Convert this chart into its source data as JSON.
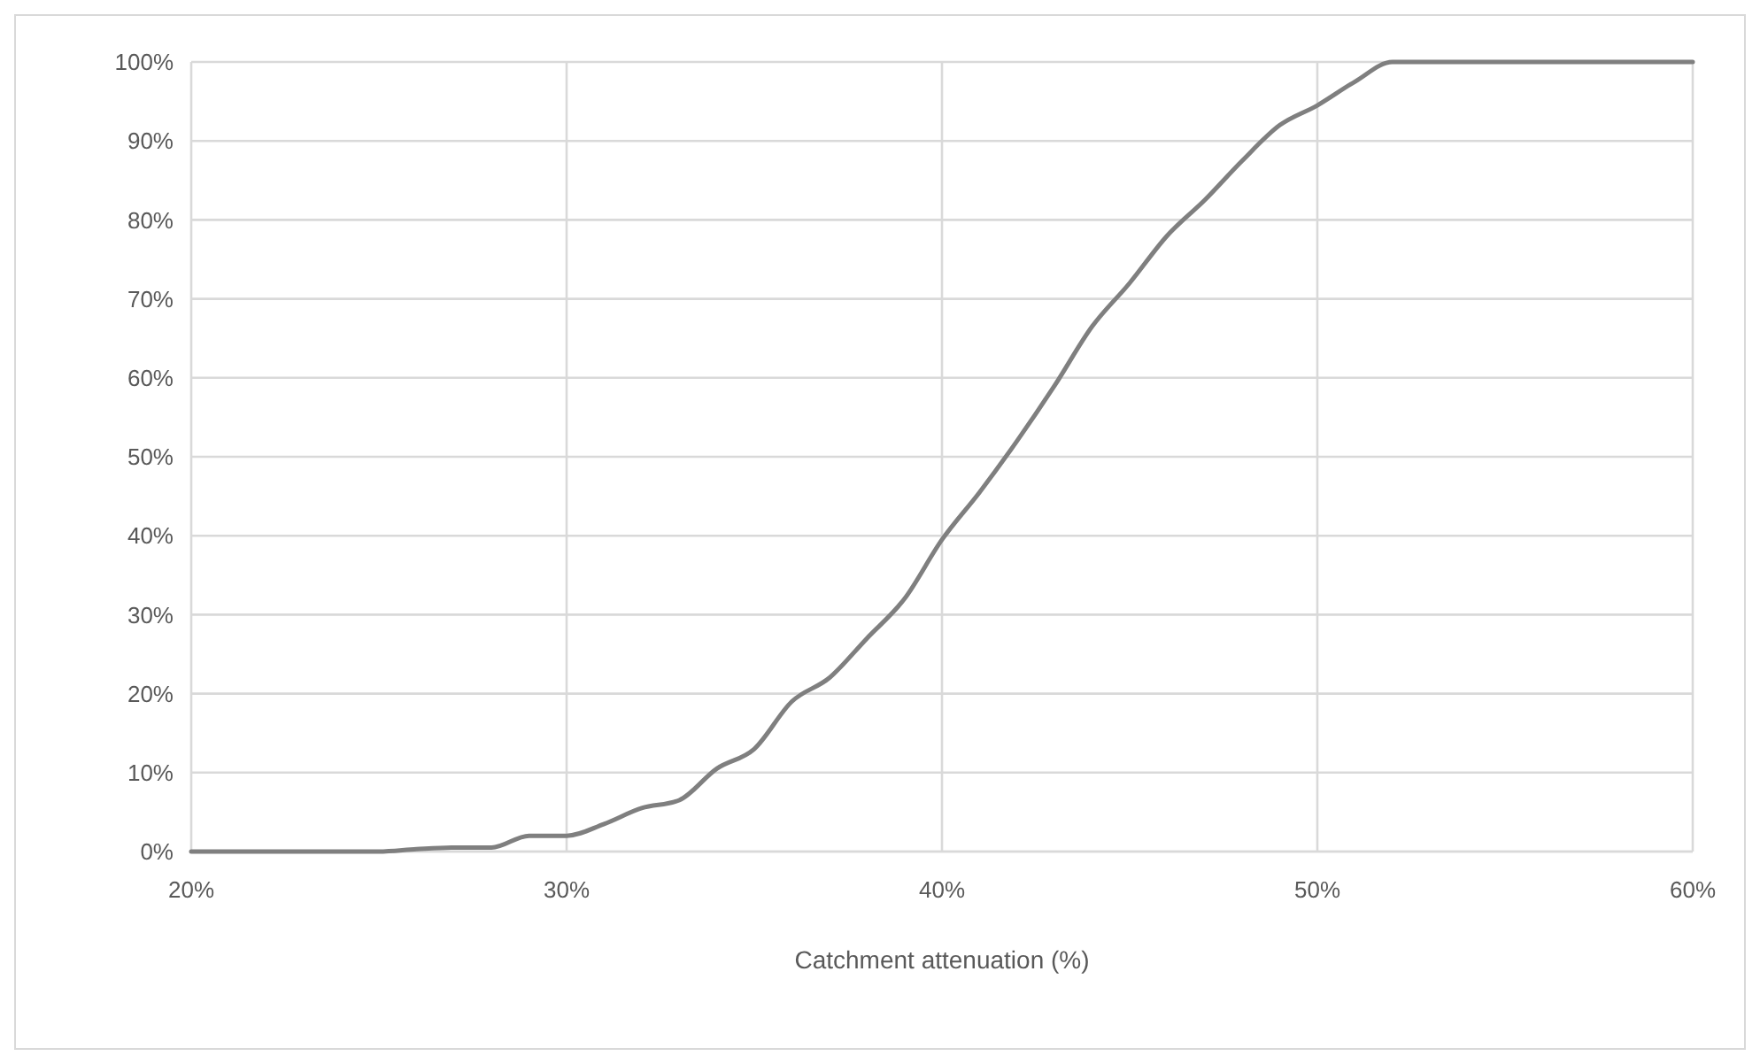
{
  "chart_data": {
    "type": "line",
    "xlabel": "Catchment attenuation (%)",
    "x": [
      20,
      25,
      26,
      27,
      28,
      29,
      30,
      31,
      32,
      33,
      34,
      35,
      36,
      37,
      38,
      39,
      40,
      41,
      42,
      43,
      44,
      45,
      46,
      47,
      48,
      49,
      50,
      51,
      52,
      60
    ],
    "series": [
      {
        "color": "#7f7f7f",
        "values": [
          0,
          0,
          0.3,
          0.5,
          0.5,
          2,
          2,
          3.5,
          5.5,
          6.5,
          10.5,
          13,
          19,
          22,
          27,
          32,
          39.5,
          45.5,
          52,
          59,
          66.5,
          72,
          78,
          82.5,
          87.5,
          92,
          94.5,
          97.5,
          100,
          100
        ]
      }
    ],
    "xlim": [
      20,
      60
    ],
    "xticks": [
      {
        "value": 20,
        "label": "20%"
      },
      {
        "value": 30,
        "label": "30%"
      },
      {
        "value": 40,
        "label": "40%"
      },
      {
        "value": 50,
        "label": "50%"
      },
      {
        "value": 60,
        "label": "60%"
      }
    ],
    "ylim": [
      0,
      100
    ],
    "yticks": [
      {
        "value": 0,
        "label": "0%"
      },
      {
        "value": 10,
        "label": "10%"
      },
      {
        "value": 20,
        "label": "20%"
      },
      {
        "value": 30,
        "label": "30%"
      },
      {
        "value": 40,
        "label": "40%"
      },
      {
        "value": 50,
        "label": "50%"
      },
      {
        "value": 60,
        "label": "60%"
      },
      {
        "value": 70,
        "label": "70%"
      },
      {
        "value": 80,
        "label": "80%"
      },
      {
        "value": 90,
        "label": "90%"
      },
      {
        "value": 100,
        "label": "100%"
      }
    ],
    "grid": true,
    "marker": "none",
    "line_style": "solid"
  }
}
